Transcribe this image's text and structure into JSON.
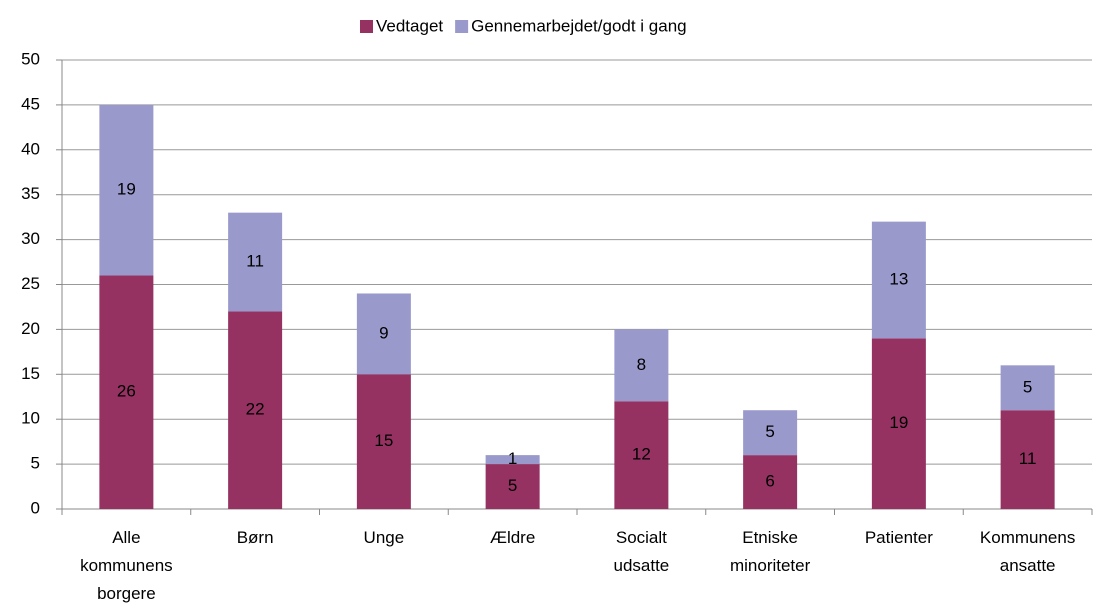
{
  "chart_data": {
    "type": "bar",
    "stacked": true,
    "categories": [
      "Alle kommunens borgere",
      "Børn",
      "Unge",
      "Ældre",
      "Socialt udsatte",
      "Etniske minoriteter",
      "Patienter",
      "Kommunens ansatte"
    ],
    "series": [
      {
        "name": "Vedtaget",
        "color": "#953262",
        "values": [
          26,
          22,
          15,
          5,
          12,
          6,
          19,
          11
        ]
      },
      {
        "name": "Gennemarbejdet/godt i gang",
        "color": "#9999cc",
        "values": [
          19,
          11,
          9,
          1,
          8,
          5,
          13,
          5
        ]
      }
    ],
    "ylim": [
      0,
      50
    ],
    "yticks": [
      0,
      5,
      10,
      15,
      20,
      25,
      30,
      35,
      40,
      45,
      50
    ],
    "grid": true,
    "legend": "top"
  }
}
